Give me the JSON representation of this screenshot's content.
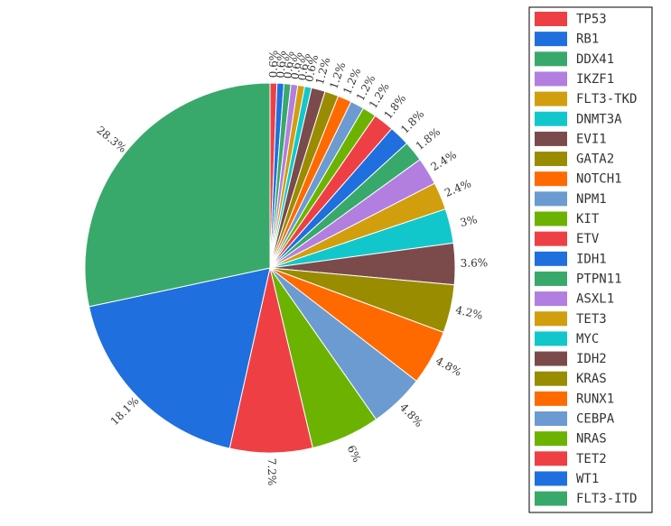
{
  "chart_data": {
    "type": "pie",
    "legend_position": "right",
    "slices": [
      {
        "name": "TP53",
        "value": 0.6,
        "label": "0.6%",
        "color": "#ee4044"
      },
      {
        "name": "RB1",
        "value": 0.6,
        "label": "0.6%",
        "color": "#1f6fde"
      },
      {
        "name": "DDX41",
        "value": 0.6,
        "label": "0.6%",
        "color": "#39a96b"
      },
      {
        "name": "IKZF1",
        "value": 0.6,
        "label": "0.6%",
        "color": "#b27ee0"
      },
      {
        "name": "FLT3-TKD",
        "value": 0.6,
        "label": "0.6%",
        "color": "#d19e0e"
      },
      {
        "name": "DNMT3A",
        "value": 0.6,
        "label": "0.6%",
        "color": "#12c7cc"
      },
      {
        "name": "EVI1",
        "value": 1.2,
        "label": "1.2%",
        "color": "#7b4b4b"
      },
      {
        "name": "GATA2",
        "value": 1.2,
        "label": "1.2%",
        "color": "#9a8c00"
      },
      {
        "name": "NOTCH1",
        "value": 1.2,
        "label": "1.2%",
        "color": "#ff6a00"
      },
      {
        "name": "NPM1",
        "value": 1.2,
        "label": "1.2%",
        "color": "#6b9bd0"
      },
      {
        "name": "KIT",
        "value": 1.2,
        "label": "1.2%",
        "color": "#6bb300"
      },
      {
        "name": "ETV",
        "value": 1.8,
        "label": "1.8%",
        "color": "#ee4044"
      },
      {
        "name": "IDH1",
        "value": 1.8,
        "label": "1.8%",
        "color": "#1f6fde"
      },
      {
        "name": "PTPN11",
        "value": 1.8,
        "label": "1.8%",
        "color": "#39a96b"
      },
      {
        "name": "ASXL1",
        "value": 2.4,
        "label": "2.4%",
        "color": "#b27ee0"
      },
      {
        "name": "TET3",
        "value": 2.4,
        "label": "2.4%",
        "color": "#d19e0e"
      },
      {
        "name": "MYC",
        "value": 3.0,
        "label": "3%",
        "color": "#12c7cc"
      },
      {
        "name": "IDH2",
        "value": 3.6,
        "label": "3.6%",
        "color": "#7b4b4b"
      },
      {
        "name": "KRAS",
        "value": 4.2,
        "label": "4.2%",
        "color": "#9a8c00"
      },
      {
        "name": "RUNX1",
        "value": 4.8,
        "label": "4.8%",
        "color": "#ff6a00"
      },
      {
        "name": "CEBPA",
        "value": 4.8,
        "label": "4.8%",
        "color": "#6b9bd0"
      },
      {
        "name": "NRAS",
        "value": 6.0,
        "label": "6%",
        "color": "#6bb300"
      },
      {
        "name": "TET2",
        "value": 7.2,
        "label": "7.2%",
        "color": "#ee4044"
      },
      {
        "name": "WT1",
        "value": 18.1,
        "label": "18.1%",
        "color": "#1f6fde"
      },
      {
        "name": "FLT3-ITD",
        "value": 28.3,
        "label": "28.3%",
        "color": "#39a96b"
      }
    ]
  }
}
